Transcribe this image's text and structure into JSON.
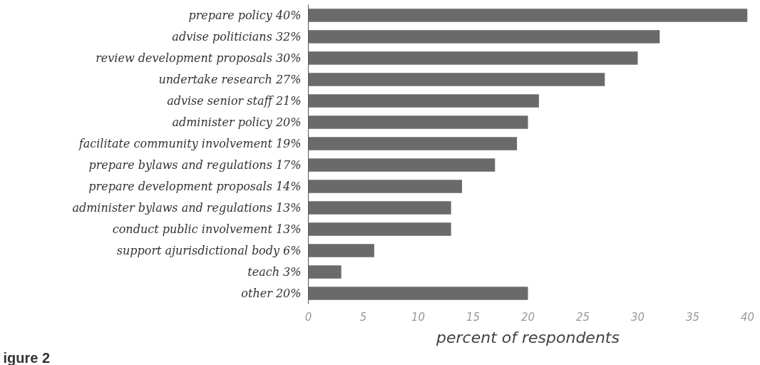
{
  "chart_data": {
    "type": "bar",
    "orientation": "horizontal",
    "categories": [
      "prepare policy 40%",
      "advise politicians 32%",
      "review development proposals 30%",
      "undertake research 27%",
      "advise senior staff 21%",
      "administer policy 20%",
      "facilitate community involvement 19%",
      "prepare bylaws and regulations 17%",
      "prepare development proposals 14%",
      "administer bylaws and regulations 13%",
      "conduct public involvement 13%",
      "support ajurisdictional body 6%",
      "teach 3%",
      "other 20%"
    ],
    "values": [
      40,
      32,
      30,
      27,
      21,
      20,
      19,
      17,
      14,
      13,
      13,
      6,
      3,
      20
    ],
    "color": "#6a6a6a",
    "xlabel": "percent of respondents",
    "xlim": [
      0,
      40
    ],
    "xticks": [
      0,
      5,
      10,
      15,
      20,
      25,
      30,
      35,
      40
    ],
    "grid": false,
    "annotations": [
      "igure 2"
    ]
  }
}
